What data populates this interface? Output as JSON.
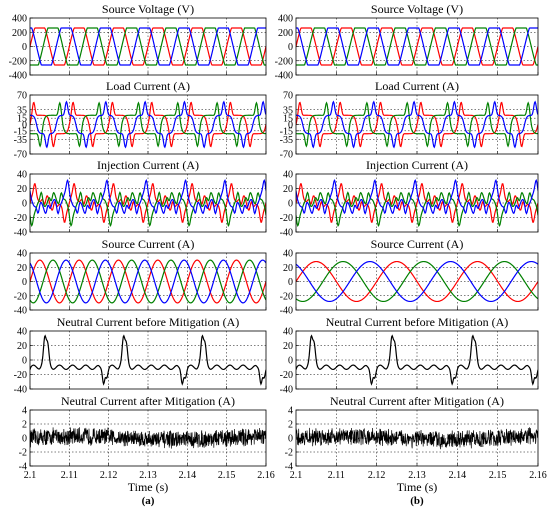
{
  "chart_data": [
    {
      "panel": "a",
      "type": "line",
      "sublabel": "(a)",
      "xlabel": "Time (s)",
      "x_ticks": [
        "2.1",
        "2.11",
        "2.12",
        "2.13",
        "2.14",
        "2.15",
        "2.16"
      ],
      "xlim": [
        2.1,
        2.16
      ],
      "grid": true,
      "colors": {
        "phase_a": "#ff0000",
        "phase_b": "#008000",
        "phase_c": "#0000ff",
        "neutral": "#000000"
      },
      "subplots": [
        {
          "key": "source_voltage",
          "title": "Source Voltage (V)",
          "ylim": [
            -400,
            400
          ],
          "y_ticks": [
            "400",
            "200",
            "0",
            "-200",
            "-400"
          ],
          "waveform": "flat-top three-phase sine",
          "frequency_hz": 100,
          "amplitude": 260
        },
        {
          "key": "load_current",
          "title": "Load Current (A)",
          "ylim": [
            -70,
            70
          ],
          "y_ticks": [
            "70",
            "35",
            "15",
            "0",
            "-15",
            "-35",
            "-70"
          ],
          "waveform": "three-phase distorted pulses with peaks near 55",
          "frequency_hz": 100,
          "amplitude": 25
        },
        {
          "key": "injection_current",
          "title": "Injection Current (A)",
          "ylim": [
            -40,
            40
          ],
          "y_ticks": [
            "40",
            "20",
            "0",
            "-20",
            "-40"
          ],
          "waveform": "three-phase compensating current",
          "frequency_hz": 100,
          "amplitude": 25
        },
        {
          "key": "source_current",
          "title": "Source Current (A)",
          "ylim": [
            -40,
            40
          ],
          "y_ticks": [
            "40",
            "20",
            "0",
            "-20",
            "-40"
          ],
          "waveform": "balanced three-phase sine",
          "frequency_hz": 100,
          "amplitude": 30
        },
        {
          "key": "neutral_before",
          "title": "Neutral Current before Mitigation (A)",
          "ylim": [
            -40,
            40
          ],
          "y_ticks": [
            "40",
            "20",
            "0",
            "-20",
            "-40"
          ],
          "waveform": "distorted neutral current",
          "amplitude": 30
        },
        {
          "key": "neutral_after",
          "title": "Neutral Current after Mitigation (A)",
          "ylim": [
            -4,
            4
          ],
          "y_ticks": [
            "4",
            "2",
            "0",
            "-2",
            "-4"
          ],
          "waveform": "noise around zero",
          "amplitude": 1
        }
      ]
    },
    {
      "panel": "b",
      "type": "line",
      "sublabel": "(b)",
      "xlabel": "Time (s)",
      "x_ticks": [
        "2.1",
        "2.11",
        "2.12",
        "2.13",
        "2.14",
        "2.15",
        "2.16"
      ],
      "xlim": [
        2.1,
        2.16
      ],
      "grid": true,
      "colors": {
        "phase_a": "#ff0000",
        "phase_b": "#008000",
        "phase_c": "#0000ff",
        "neutral": "#000000"
      },
      "subplots": [
        {
          "key": "source_voltage",
          "title": "Source Voltage (V)",
          "ylim": [
            -400,
            400
          ],
          "y_ticks": [
            "400",
            "200",
            "0",
            "-200",
            "-400"
          ],
          "waveform": "flat-top three-phase sine",
          "frequency_hz": 100,
          "amplitude": 260
        },
        {
          "key": "load_current",
          "title": "Load Current (A)",
          "ylim": [
            -70,
            70
          ],
          "y_ticks": [
            "70",
            "35",
            "15",
            "0",
            "-15",
            "-35",
            "-70"
          ],
          "waveform": "three-phase distorted pulses with peaks near 55",
          "frequency_hz": 100,
          "amplitude": 25
        },
        {
          "key": "injection_current",
          "title": "Injection Current (A)",
          "ylim": [
            -40,
            40
          ],
          "y_ticks": [
            "40",
            "20",
            "0",
            "-20",
            "-40"
          ],
          "waveform": "three-phase compensating current",
          "frequency_hz": 100,
          "amplitude": 25
        },
        {
          "key": "source_current",
          "title": "Source Current (A)",
          "ylim": [
            -40,
            40
          ],
          "y_ticks": [
            "40",
            "20",
            "0",
            "-20",
            "-40"
          ],
          "waveform": "balanced three-phase sine",
          "frequency_hz": 50,
          "amplitude": 28
        },
        {
          "key": "neutral_before",
          "title": "Neutral Current before Mitigation (A)",
          "ylim": [
            -40,
            40
          ],
          "y_ticks": [
            "40",
            "20",
            "0",
            "-20",
            "-40"
          ],
          "waveform": "distorted neutral current",
          "amplitude": 30
        },
        {
          "key": "neutral_after",
          "title": "Neutral Current after Mitigation (A)",
          "ylim": [
            -4,
            4
          ],
          "y_ticks": [
            "4",
            "2",
            "0",
            "-2",
            "-4"
          ],
          "waveform": "noise around zero",
          "amplitude": 1
        }
      ]
    }
  ]
}
